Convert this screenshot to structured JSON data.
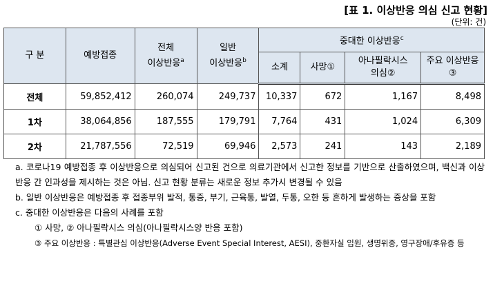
{
  "title": "[표 1. 이상반응 의심 신고 현황]",
  "unit": "(단위: 건)",
  "table": {
    "header": {
      "category": "구 분",
      "vaccination": "예방접종",
      "total_ae": {
        "line1": "전체",
        "line2": "이상반응",
        "note": "a"
      },
      "general_ae": {
        "line1": "일반",
        "line2": "이상반응",
        "note": "b"
      },
      "serious_ae": {
        "label": "중대한 이상반응",
        "note": "c"
      },
      "subtotal": "소계",
      "death": "사망①",
      "anaphylaxis": {
        "line1": "아나필락시스",
        "line2": "의심②"
      },
      "major": {
        "line1": "주요 이상반응",
        "line2": "③"
      }
    },
    "rows": [
      [
        "전체",
        "59,852,412",
        "260,074",
        "249,737",
        "10,337",
        "672",
        "1,167",
        "8,498"
      ],
      [
        "1차",
        "38,064,856",
        "187,555",
        "179,791",
        "7,764",
        "431",
        "1,024",
        "6,309"
      ],
      [
        "2차",
        "21,787,556",
        "72,519",
        "69,946",
        "2,573",
        "241",
        "143",
        "2,189"
      ]
    ]
  },
  "notes": [
    "a. 코로나19 예방접종 후 이상반응으로 의심되어 신고된 건으로 의료기관에서 신고한 정보를 기반으로 산출하였으며, 백신과 이상반응 간 인과성을 제시하는 것은 아님. 신고 현황 분류는 새로운 정보 추가시 변경될 수 있음",
    "b. 일반 이상반응은 예방접종 후 접종부위 발적, 통증, 부기, 근육통, 발열, 두통, 오한 등 흔하게 발생하는 증상을 포함",
    "c. 중대한 이상반응은 다음의 사례를 포함",
    "① 사망, ② 아나필락시스 의심(아나필락시스양 반응 포함)",
    "③ 주요 이상반응 : 특별관심 이상반응(Adverse Event Special Interest, AESI), 중환자실 입원, 생명위중, 영구장애/후유증 등"
  ]
}
